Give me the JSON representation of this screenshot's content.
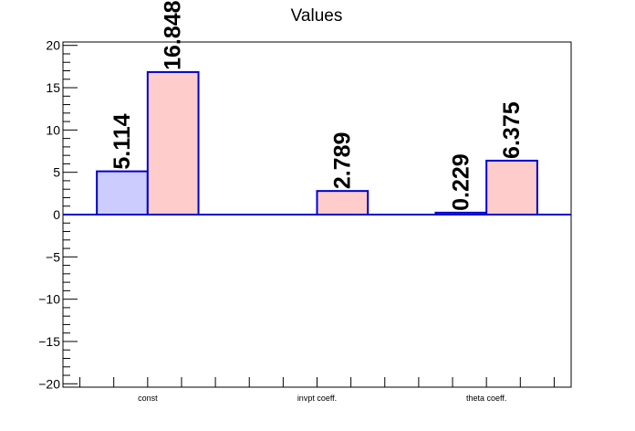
{
  "chart_data": {
    "type": "bar",
    "title": "Values",
    "xlabel": "",
    "ylabel": "",
    "categories": [
      "const",
      "invpt coeff.",
      "theta coeff."
    ],
    "series": [
      {
        "values": [
          5.114,
          0,
          0.229
        ],
        "fill": "#ccccff",
        "stroke": "#0000cc"
      },
      {
        "values": [
          16.848,
          2.789,
          6.375
        ],
        "fill": "#ffcccc",
        "stroke": "#0000cc"
      }
    ],
    "data_labels": [
      [
        "5.114",
        "",
        "0.229"
      ],
      [
        "16.848",
        "2.789",
        "6.375"
      ]
    ],
    "ylim": [
      -20.4,
      20.4
    ],
    "yticks": [
      -20,
      -15,
      -10,
      -5,
      0,
      5,
      10,
      15,
      20
    ],
    "ytick_labels": [
      "−20",
      "−15",
      "−10",
      "−5",
      "0",
      "5",
      "10",
      "15",
      "20"
    ],
    "grid": false,
    "legend": "none",
    "zero_line_color": "#0000cc"
  }
}
